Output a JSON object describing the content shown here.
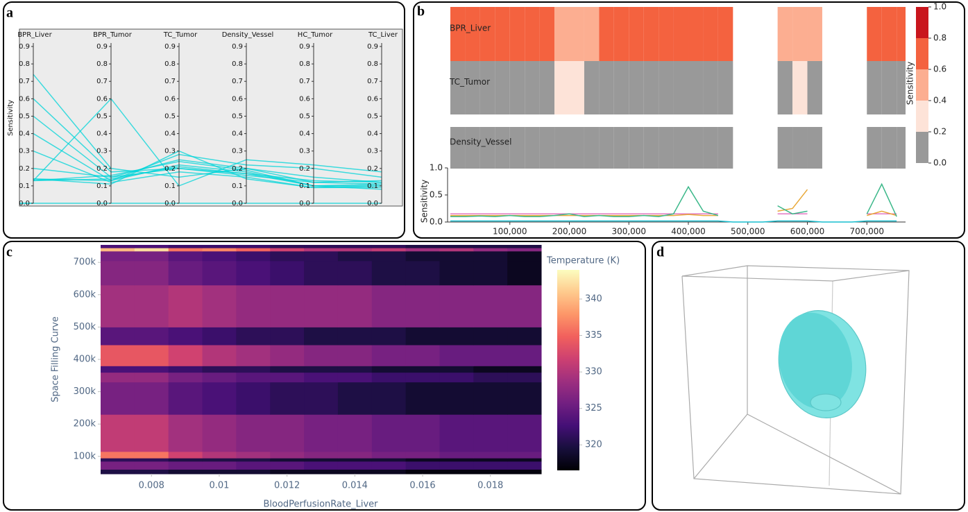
{
  "panel_labels": [
    "a",
    "b",
    "c",
    "d"
  ],
  "chart_data": [
    {
      "type": "parallel",
      "ylabel": "Sensitivity",
      "axes": [
        "BPR_Liver",
        "BPR_Tumor",
        "TC_Tumor",
        "Density_Vessel",
        "HC_Tumor",
        "TC_Liver"
      ],
      "ylim": [
        0,
        0.92
      ],
      "yticks": [
        {
          "value": 0,
          "label": "0.0"
        },
        0.1,
        0.2,
        0.3,
        0.4,
        0.5,
        0.6,
        0.7,
        0.8,
        0.9
      ],
      "color": "#00d4d8",
      "lines": [
        [
          0.74,
          0.2,
          0.15,
          0.2,
          0.12,
          0.11
        ],
        [
          0.6,
          0.18,
          0.2,
          0.17,
          0.1,
          0.1
        ],
        [
          0.5,
          0.15,
          0.25,
          0.2,
          0.15,
          0.12
        ],
        [
          0.4,
          0.13,
          0.22,
          0.18,
          0.1,
          0.08
        ],
        [
          0.3,
          0.12,
          0.18,
          0.15,
          0.09,
          0.1
        ],
        [
          0.2,
          0.15,
          0.2,
          0.16,
          0.12,
          0.13
        ],
        [
          0.14,
          0.13,
          0.28,
          0.22,
          0.2,
          0.15
        ],
        [
          0.13,
          0.6,
          0.1,
          0.25,
          0.22,
          0.18
        ],
        [
          0.14,
          0.11,
          0.3,
          0.14,
          0.09,
          0.09
        ],
        [
          0.13,
          0.16,
          0.24,
          0.19,
          0.1,
          0.11
        ],
        [
          0.13,
          0.14,
          0.21,
          0.17,
          0.13,
          0.12
        ],
        [
          0,
          0,
          0,
          0,
          0,
          0
        ]
      ]
    },
    {
      "type": "strip",
      "x": [
        0,
        25000,
        50000,
        75000,
        100000,
        125000,
        150000,
        175000,
        200000,
        225000,
        250000,
        275000,
        300000,
        325000,
        350000,
        375000,
        400000,
        425000,
        450000,
        475000,
        500000,
        525000,
        550000,
        575000,
        600000,
        625000,
        650000,
        675000,
        700000,
        725000,
        750000
      ],
      "xlim": [
        0,
        765000
      ],
      "strips": [
        {
          "name": "BPR_Liver",
          "values": [
            0.65,
            0.65,
            0.65,
            0.65,
            0.65,
            0.65,
            0.65,
            0.55,
            0.5,
            0.55,
            0.65,
            0.65,
            0.6,
            0.65,
            0.65,
            0.65,
            0.65,
            0.65,
            0.65,
            null,
            null,
            null,
            0.5,
            0.45,
            0.5,
            null,
            null,
            null,
            0.65,
            0.65,
            0.65
          ]
        },
        {
          "name": "TC_Tumor",
          "values": [
            0.15,
            0.15,
            0.15,
            0.15,
            0.15,
            0.15,
            0.15,
            0.3,
            0.3,
            0.15,
            0.15,
            0.15,
            0.15,
            0.15,
            0.15,
            0.15,
            0.15,
            0.15,
            0.15,
            null,
            null,
            null,
            0.15,
            0.3,
            0.15,
            null,
            null,
            null,
            0.15,
            0.15,
            0.15
          ]
        },
        {
          "name": "Density_Vessel",
          "values": [
            0.1,
            0.1,
            0.1,
            0.1,
            0.1,
            0.1,
            0.1,
            0.1,
            0.1,
            0.1,
            0.1,
            0.1,
            0.1,
            0.1,
            0.1,
            0.1,
            0.1,
            0.1,
            0.1,
            null,
            null,
            null,
            0.1,
            0.1,
            0.1,
            null,
            null,
            null,
            0.1,
            0.1,
            0.1
          ]
        }
      ],
      "colorbar": {
        "label": "Sensitivity",
        "clim": [
          0,
          1
        ],
        "ticks": [
          {
            "value": 0,
            "label": "0.0"
          },
          0.2,
          0.4,
          0.6,
          0.8,
          {
            "value": 1,
            "label": "1.0"
          }
        ],
        "colors": [
          "#999999",
          "#fde3d8",
          "#fcae91",
          "#f4623f",
          "#c9161d"
        ]
      }
    },
    {
      "type": "line",
      "ylabel": "Sensitivity",
      "x": [
        0,
        25000,
        50000,
        75000,
        100000,
        125000,
        150000,
        175000,
        200000,
        225000,
        250000,
        275000,
        300000,
        325000,
        350000,
        375000,
        400000,
        425000,
        450000,
        475000,
        500000,
        525000,
        550000,
        575000,
        600000,
        625000,
        650000,
        675000,
        700000,
        725000,
        750000
      ],
      "xlim": [
        0,
        765000
      ],
      "ylim": [
        0,
        1
      ],
      "yticks": [
        {
          "value": 0,
          "label": "0.0"
        },
        0.5,
        {
          "value": 1,
          "label": "1.0"
        }
      ],
      "xticks": [
        {
          "value": 100000,
          "label": "100,000"
        },
        {
          "value": 200000,
          "label": "200,000"
        },
        {
          "value": 300000,
          "label": "300,000"
        },
        {
          "value": 400000,
          "label": "400,000"
        },
        {
          "value": 500000,
          "label": "500,000"
        },
        {
          "value": 600000,
          "label": "600,000"
        },
        {
          "value": 700000,
          "label": "700,000"
        }
      ],
      "series": [
        {
          "color": "#17becf",
          "values": [
            0.02,
            0.02,
            0.02,
            0.02,
            0.02,
            0.02,
            0.02,
            0.02,
            0.02,
            0.02,
            0.02,
            0.02,
            0.02,
            0.02,
            0.02,
            0.02,
            0.02,
            0.02,
            0.02,
            0,
            0,
            0,
            0.02,
            0.02,
            0.02,
            0,
            0,
            0,
            0.02,
            0.02,
            0.02
          ]
        },
        {
          "color": "#e377c2",
          "values": [
            0.15,
            0.15,
            0.15,
            0.15,
            0.15,
            0.15,
            0.15,
            0.15,
            0.15,
            0.15,
            0.15,
            0.15,
            0.15,
            0.15,
            0.15,
            0.15,
            0.15,
            0.15,
            0.15,
            null,
            null,
            null,
            0.15,
            0.15,
            0.15,
            null,
            null,
            null,
            0.15,
            0.15,
            0.15
          ]
        },
        {
          "color": "#e8a838",
          "values": [
            0.12,
            0.12,
            0.12,
            0.12,
            0.12,
            0.12,
            0.12,
            0.12,
            0.12,
            0.12,
            0.12,
            0.12,
            0.12,
            0.12,
            0.12,
            0.12,
            0.14,
            0.12,
            0.12,
            null,
            null,
            null,
            0.2,
            0.25,
            0.6,
            null,
            null,
            null,
            0.12,
            0.2,
            0.12
          ]
        },
        {
          "color": "#3cb88a",
          "values": [
            0.1,
            0.1,
            0.11,
            0.1,
            0.12,
            0.1,
            0.1,
            0.12,
            0.15,
            0.1,
            0.12,
            0.1,
            0.1,
            0.12,
            0.1,
            0.15,
            0.65,
            0.2,
            0.12,
            null,
            null,
            null,
            0.3,
            0.15,
            0.2,
            null,
            null,
            null,
            0.15,
            0.7,
            0.1
          ]
        }
      ]
    },
    {
      "type": "heatmap",
      "xlabel": "BloodPerfusionRate_Liver",
      "ylabel": "Space Filling Curve",
      "x": [
        0.007,
        0.008,
        0.009,
        0.01,
        0.011,
        0.012,
        0.013,
        0.014,
        0.015,
        0.016,
        0.017,
        0.018,
        0.019
      ],
      "xlim": [
        0.0065,
        0.0195
      ],
      "y": [
        46000,
        60000,
        85000,
        95000,
        115000,
        230000,
        330000,
        360000,
        380000,
        445000,
        500000,
        630000,
        705000,
        735000,
        745000
      ],
      "ylim": [
        46000,
        754000
      ],
      "xticks": [
        0.008,
        0.01,
        0.012,
        0.014,
        0.016,
        0.018
      ],
      "yticks": [
        {
          "value": 100000,
          "label": "100k"
        },
        {
          "value": 200000,
          "label": "200k"
        },
        {
          "value": 300000,
          "label": "300k"
        },
        {
          "value": 400000,
          "label": "400k"
        },
        {
          "value": 500000,
          "label": "500k"
        },
        {
          "value": 600000,
          "label": "600k"
        },
        {
          "value": 700000,
          "label": "700k"
        }
      ],
      "z": [
        [
          320,
          320,
          319,
          319,
          319,
          318,
          318,
          318,
          318,
          317,
          317,
          317,
          317
        ],
        [
          326,
          326,
          325,
          325,
          324,
          324,
          323,
          323,
          323,
          322,
          322,
          322,
          322
        ],
        [
          321,
          321,
          320,
          320,
          320,
          319,
          319,
          319,
          319,
          318,
          318,
          318,
          318
        ],
        [
          336,
          336,
          332,
          330,
          329,
          328,
          327,
          327,
          326,
          326,
          325,
          325,
          325
        ],
        [
          331,
          331,
          329,
          328,
          327,
          327,
          326,
          326,
          325,
          325,
          324,
          324,
          324
        ],
        [
          326,
          326,
          324,
          323,
          322,
          321,
          321,
          320,
          320,
          319,
          319,
          319,
          319
        ],
        [
          328,
          328,
          326,
          325,
          324,
          324,
          323,
          323,
          322,
          322,
          322,
          321,
          321
        ],
        [
          323,
          323,
          322,
          321,
          321,
          320,
          320,
          320,
          319,
          319,
          319,
          318,
          318
        ],
        [
          334,
          334,
          332,
          330,
          329,
          328,
          327,
          327,
          326,
          326,
          325,
          325,
          325
        ],
        [
          324,
          324,
          323,
          322,
          321,
          321,
          320,
          320,
          320,
          319,
          319,
          319,
          319
        ],
        [
          329,
          329,
          330,
          329,
          328,
          328,
          328,
          328,
          327,
          327,
          327,
          327,
          327
        ],
        [
          327,
          327,
          325,
          324,
          323,
          322,
          321,
          321,
          320,
          320,
          319,
          319,
          318
        ],
        [
          326,
          326,
          324,
          323,
          322,
          321,
          321,
          320,
          320,
          319,
          319,
          319,
          318
        ],
        [
          340,
          342,
          336,
          337,
          335,
          332,
          330,
          330,
          331,
          329,
          330,
          328,
          327
        ],
        [
          323,
          323,
          322,
          322,
          322,
          321,
          321,
          321,
          321,
          320,
          320,
          320,
          320
        ]
      ],
      "colorbar": {
        "label": "Temperature (K)",
        "clim": [
          316.5,
          344
        ],
        "ticks": [
          320,
          325,
          330,
          335,
          340
        ],
        "colorscale": [
          "#000004",
          "#180f3d",
          "#440f76",
          "#721f81",
          "#9e2f7f",
          "#cd4071",
          "#f1605d",
          "#fd9668",
          "#feca8d",
          "#fcfdbf"
        ]
      }
    }
  ]
}
